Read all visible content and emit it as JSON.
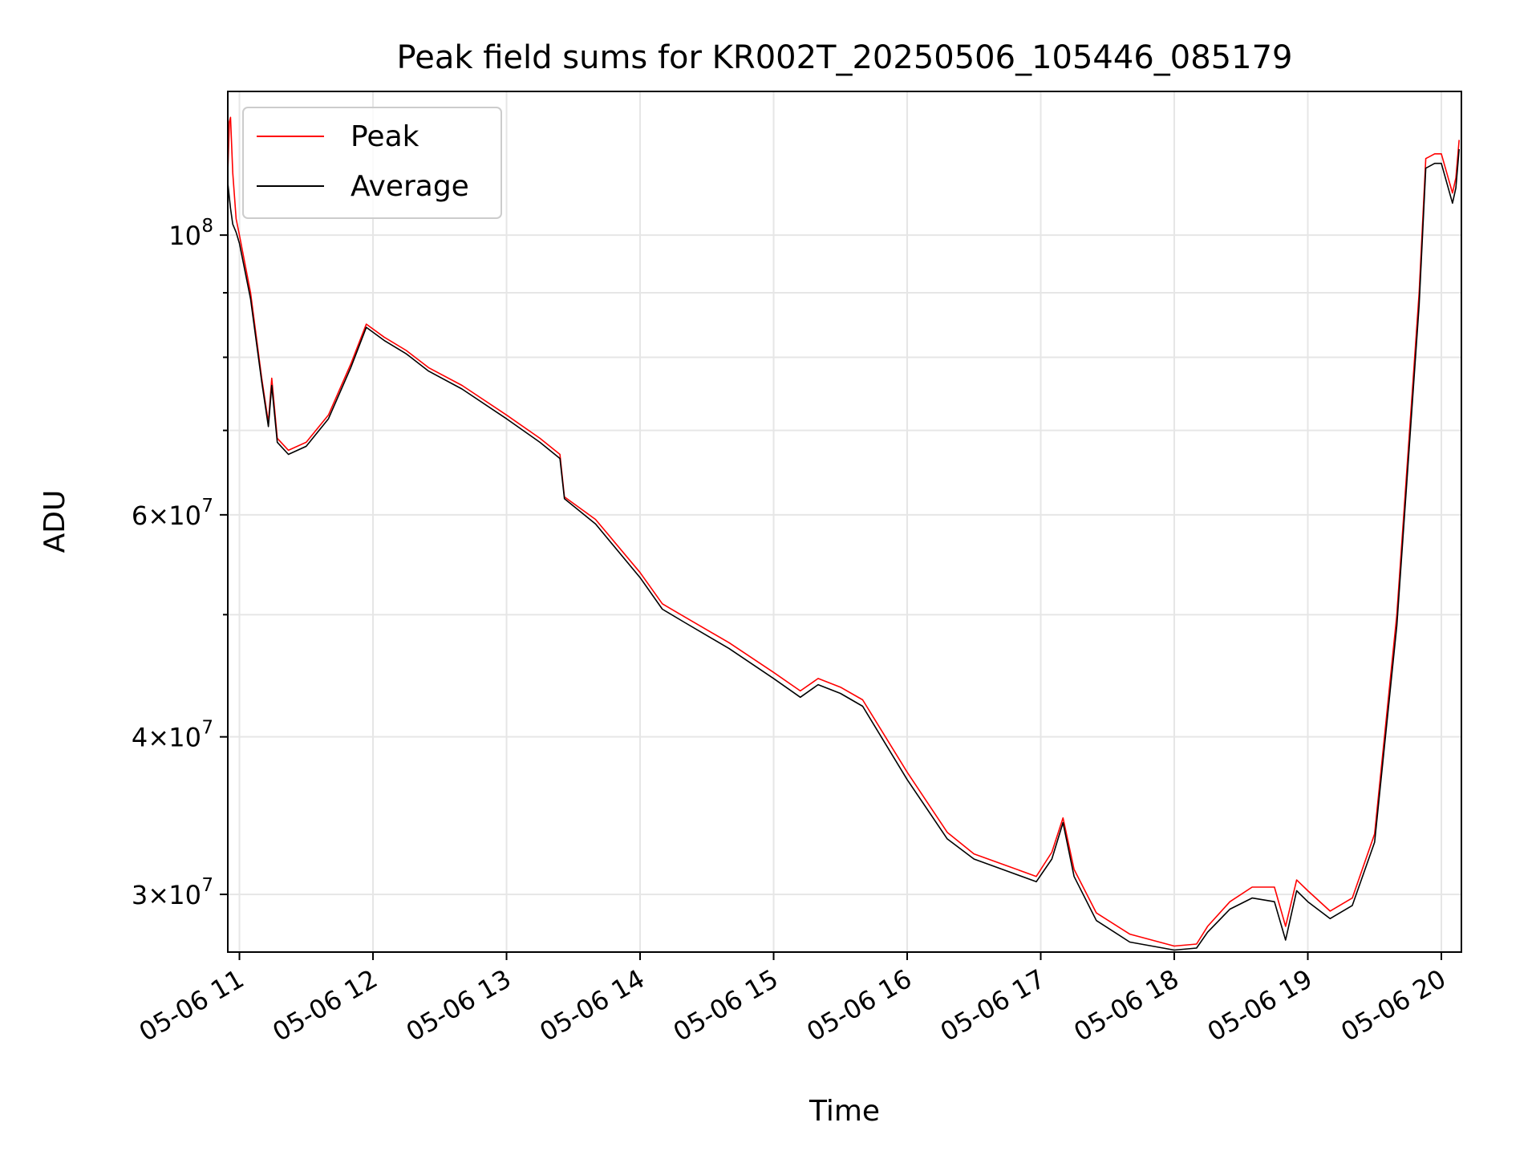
{
  "chart_data": {
    "type": "line",
    "title": "Peak field sums for KR002T_20250506_105446_085179",
    "xlabel": "Time",
    "ylabel": "ADU",
    "yscale": "log",
    "grid": true,
    "legend_position": "upper-left",
    "xlim": [
      "2025-05-06T10:54:46",
      "2025-05-06T20:09:00"
    ],
    "ylim": [
      27000000,
      130000000
    ],
    "x_ticks": [
      {
        "value": "2025-05-06T11:00:00",
        "label": "05-06 11"
      },
      {
        "value": "2025-05-06T12:00:00",
        "label": "05-06 12"
      },
      {
        "value": "2025-05-06T13:00:00",
        "label": "05-06 13"
      },
      {
        "value": "2025-05-06T14:00:00",
        "label": "05-06 14"
      },
      {
        "value": "2025-05-06T15:00:00",
        "label": "05-06 15"
      },
      {
        "value": "2025-05-06T16:00:00",
        "label": "05-06 16"
      },
      {
        "value": "2025-05-06T17:00:00",
        "label": "05-06 17"
      },
      {
        "value": "2025-05-06T18:00:00",
        "label": "05-06 18"
      },
      {
        "value": "2025-05-06T19:00:00",
        "label": "05-06 19"
      },
      {
        "value": "2025-05-06T20:00:00",
        "label": "05-06 20"
      }
    ],
    "y_major_ticks": [
      {
        "value": 30000000,
        "mant": "3",
        "exp": "7"
      },
      {
        "value": 40000000,
        "mant": "4",
        "exp": "7"
      },
      {
        "value": 60000000,
        "mant": "6",
        "exp": "7"
      },
      {
        "value": 100000000,
        "mant": "",
        "exp": "8"
      }
    ],
    "y_minor_ticks": [
      50000000,
      70000000,
      80000000,
      90000000
    ],
    "series": [
      {
        "name": "Peak",
        "color": "#ff0000",
        "x": [
          "2025-05-06T10:54:46",
          "2025-05-06T10:55:30",
          "2025-05-06T10:56:00",
          "2025-05-06T10:57:00",
          "2025-05-06T10:58:30",
          "2025-05-06T11:00:00",
          "2025-05-06T11:05:00",
          "2025-05-06T11:10:00",
          "2025-05-06T11:13:00",
          "2025-05-06T11:14:30",
          "2025-05-06T11:17:00",
          "2025-05-06T11:22:00",
          "2025-05-06T11:30:00",
          "2025-05-06T11:40:00",
          "2025-05-06T11:50:00",
          "2025-05-06T11:57:00",
          "2025-05-06T12:05:00",
          "2025-05-06T12:15:00",
          "2025-05-06T12:25:00",
          "2025-05-06T12:40:00",
          "2025-05-06T13:00:00",
          "2025-05-06T13:15:00",
          "2025-05-06T13:24:00",
          "2025-05-06T13:26:00",
          "2025-05-06T13:40:00",
          "2025-05-06T14:00:00",
          "2025-05-06T14:10:00",
          "2025-05-06T14:20:00",
          "2025-05-06T14:40:00",
          "2025-05-06T15:00:00",
          "2025-05-06T15:12:00",
          "2025-05-06T15:20:00",
          "2025-05-06T15:30:00",
          "2025-05-06T15:40:00",
          "2025-05-06T16:00:00",
          "2025-05-06T16:18:00",
          "2025-05-06T16:30:00",
          "2025-05-06T16:45:00",
          "2025-05-06T16:58:00",
          "2025-05-06T17:05:00",
          "2025-05-06T17:10:00",
          "2025-05-06T17:15:00",
          "2025-05-06T17:25:00",
          "2025-05-06T17:40:00",
          "2025-05-06T18:00:00",
          "2025-05-06T18:10:00",
          "2025-05-06T18:15:00",
          "2025-05-06T18:25:00",
          "2025-05-06T18:35:00",
          "2025-05-06T18:45:00",
          "2025-05-06T18:50:00",
          "2025-05-06T18:55:00",
          "2025-05-06T19:00:00",
          "2025-05-06T19:10:00",
          "2025-05-06T19:20:00",
          "2025-05-06T19:30:00",
          "2025-05-06T19:40:00",
          "2025-05-06T19:50:00",
          "2025-05-06T19:53:00",
          "2025-05-06T19:57:00",
          "2025-05-06T20:00:00",
          "2025-05-06T20:05:00",
          "2025-05-06T20:06:30",
          "2025-05-06T20:08:00"
        ],
        "values": [
          112000000,
          123000000,
          124000000,
          112000000,
          103000000,
          100000000,
          90000000,
          77000000,
          71000000,
          77000000,
          69000000,
          67500000,
          68500000,
          72000000,
          79000000,
          85000000,
          83000000,
          81000000,
          78500000,
          76000000,
          72000000,
          69000000,
          67000000,
          62000000,
          59500000,
          54000000,
          51000000,
          49800000,
          47500000,
          45000000,
          43500000,
          44500000,
          43800000,
          42800000,
          37500000,
          33600000,
          32300000,
          31600000,
          31000000,
          32400000,
          34500000,
          31400000,
          29000000,
          27900000,
          27300000,
          27400000,
          28300000,
          29600000,
          30400000,
          30400000,
          28300000,
          30800000,
          30200000,
          29100000,
          29800000,
          33500000,
          50000000,
          90000000,
          115000000,
          116000000,
          116000000,
          108000000,
          111000000,
          119000000
        ]
      },
      {
        "name": "Average",
        "color": "#000000",
        "x": [
          "2025-05-06T10:54:46",
          "2025-05-06T10:55:30",
          "2025-05-06T10:56:00",
          "2025-05-06T10:57:00",
          "2025-05-06T10:58:30",
          "2025-05-06T11:00:00",
          "2025-05-06T11:05:00",
          "2025-05-06T11:10:00",
          "2025-05-06T11:13:00",
          "2025-05-06T11:14:30",
          "2025-05-06T11:17:00",
          "2025-05-06T11:22:00",
          "2025-05-06T11:30:00",
          "2025-05-06T11:40:00",
          "2025-05-06T11:50:00",
          "2025-05-06T11:57:00",
          "2025-05-06T12:05:00",
          "2025-05-06T12:15:00",
          "2025-05-06T12:25:00",
          "2025-05-06T12:40:00",
          "2025-05-06T13:00:00",
          "2025-05-06T13:15:00",
          "2025-05-06T13:24:00",
          "2025-05-06T13:26:00",
          "2025-05-06T13:40:00",
          "2025-05-06T14:00:00",
          "2025-05-06T14:10:00",
          "2025-05-06T14:20:00",
          "2025-05-06T14:40:00",
          "2025-05-06T15:00:00",
          "2025-05-06T15:12:00",
          "2025-05-06T15:20:00",
          "2025-05-06T15:30:00",
          "2025-05-06T15:40:00",
          "2025-05-06T16:00:00",
          "2025-05-06T16:18:00",
          "2025-05-06T16:30:00",
          "2025-05-06T16:45:00",
          "2025-05-06T16:58:00",
          "2025-05-06T17:05:00",
          "2025-05-06T17:10:00",
          "2025-05-06T17:15:00",
          "2025-05-06T17:25:00",
          "2025-05-06T17:40:00",
          "2025-05-06T18:00:00",
          "2025-05-06T18:10:00",
          "2025-05-06T18:15:00",
          "2025-05-06T18:25:00",
          "2025-05-06T18:35:00",
          "2025-05-06T18:45:00",
          "2025-05-06T18:50:00",
          "2025-05-06T18:55:00",
          "2025-05-06T19:00:00",
          "2025-05-06T19:10:00",
          "2025-05-06T19:20:00",
          "2025-05-06T19:30:00",
          "2025-05-06T19:40:00",
          "2025-05-06T19:50:00",
          "2025-05-06T19:53:00",
          "2025-05-06T19:57:00",
          "2025-05-06T20:00:00",
          "2025-05-06T20:05:00",
          "2025-05-06T20:06:30",
          "2025-05-06T20:08:00"
        ],
        "values": [
          110000000,
          107000000,
          105000000,
          102000000,
          100500000,
          98500000,
          89000000,
          76500000,
          70500000,
          76000000,
          68500000,
          67000000,
          68000000,
          71500000,
          78500000,
          84500000,
          82500000,
          80500000,
          78000000,
          75500000,
          71500000,
          68500000,
          66500000,
          61800000,
          59000000,
          53500000,
          50500000,
          49300000,
          47000000,
          44500000,
          43000000,
          44000000,
          43300000,
          42300000,
          37000000,
          33200000,
          32000000,
          31300000,
          30700000,
          32000000,
          34200000,
          31000000,
          28600000,
          27500000,
          27100000,
          27200000,
          28000000,
          29200000,
          29800000,
          29600000,
          27600000,
          30200000,
          29600000,
          28700000,
          29400000,
          33000000,
          49000000,
          88000000,
          113000000,
          114000000,
          114000000,
          106000000,
          109000000,
          117000000
        ]
      }
    ]
  }
}
